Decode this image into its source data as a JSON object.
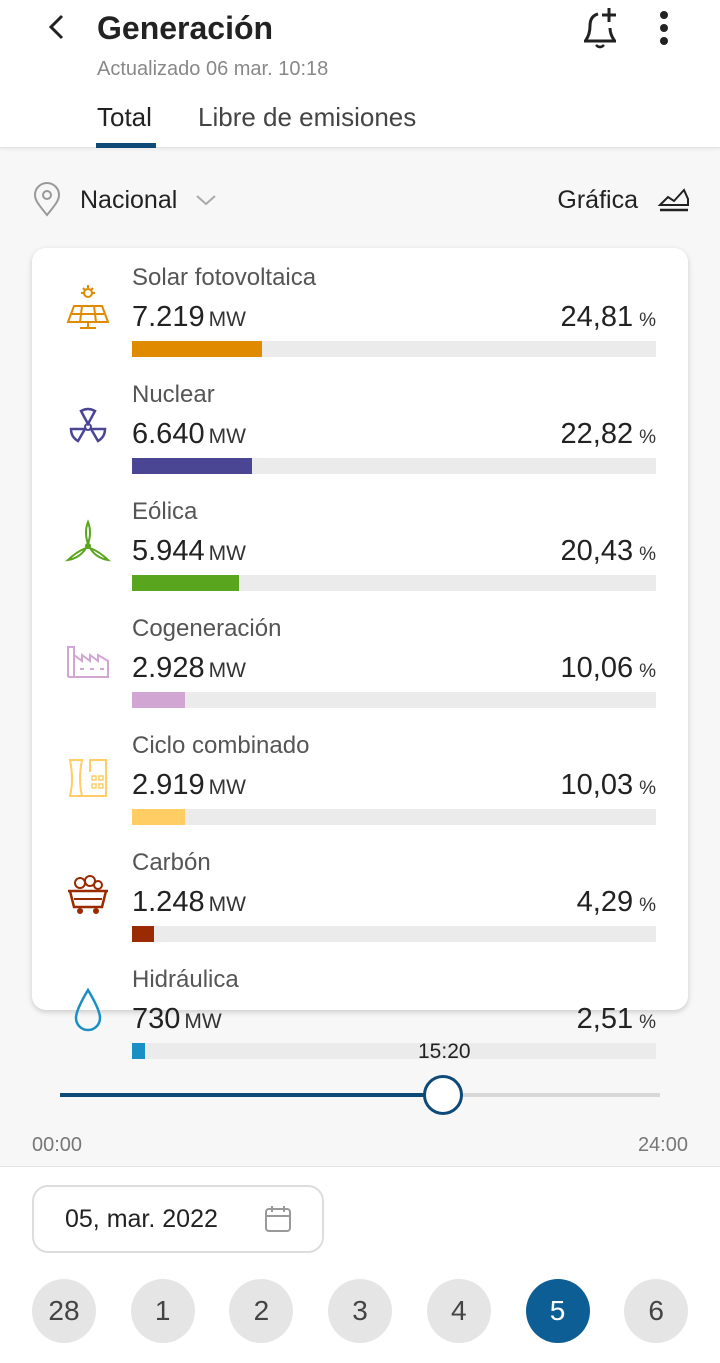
{
  "header": {
    "title": "Generación",
    "updated": "Actualizado 06 mar. 10:18"
  },
  "tabs": [
    {
      "label": "Total",
      "active": true
    },
    {
      "label": "Libre de emisiones",
      "active": false
    }
  ],
  "filters": {
    "region": "Nacional",
    "view_label": "Gráfica"
  },
  "sources": [
    {
      "name": "Solar fotovoltaica",
      "value": "7.219",
      "unit": "MW",
      "percent": "24,81",
      "pct_unit": "%",
      "fraction": 0.2481,
      "color": "#e08a00",
      "icon": "solar-panel-icon"
    },
    {
      "name": "Nuclear",
      "value": "6.640",
      "unit": "MW",
      "percent": "22,82",
      "pct_unit": "%",
      "fraction": 0.2282,
      "color": "#4a4694",
      "icon": "nuclear-icon"
    },
    {
      "name": "Eólica",
      "value": "5.944",
      "unit": "MW",
      "percent": "20,43",
      "pct_unit": "%",
      "fraction": 0.2043,
      "color": "#5aa51e",
      "icon": "wind-turbine-icon"
    },
    {
      "name": "Cogeneración",
      "value": "2.928",
      "unit": "MW",
      "percent": "10,06",
      "pct_unit": "%",
      "fraction": 0.1006,
      "color": "#d2a6d2",
      "icon": "factory-icon"
    },
    {
      "name": "Ciclo combinado",
      "value": "2.919",
      "unit": "MW",
      "percent": "10,03",
      "pct_unit": "%",
      "fraction": 0.1003,
      "color": "#ffcd63",
      "icon": "power-plant-icon"
    },
    {
      "name": "Carbón",
      "value": "1.248",
      "unit": "MW",
      "percent": "4,29",
      "pct_unit": "%",
      "fraction": 0.0429,
      "color": "#9a2a00",
      "icon": "coal-cart-icon"
    },
    {
      "name": "Hidráulica",
      "value": "730",
      "unit": "MW",
      "percent": "2,51",
      "pct_unit": "%",
      "fraction": 0.0251,
      "color": "#1a8fc4",
      "icon": "water-drop-icon"
    }
  ],
  "timeline": {
    "current": "15:20",
    "start": "00:00",
    "end": "24:00",
    "progress": 0.6389
  },
  "date": {
    "label": "05, mar. 2022"
  },
  "days": [
    {
      "label": "28"
    },
    {
      "label": "1"
    },
    {
      "label": "2"
    },
    {
      "label": "3"
    },
    {
      "label": "4"
    },
    {
      "label": "5",
      "selected": true
    },
    {
      "label": "6"
    }
  ]
}
